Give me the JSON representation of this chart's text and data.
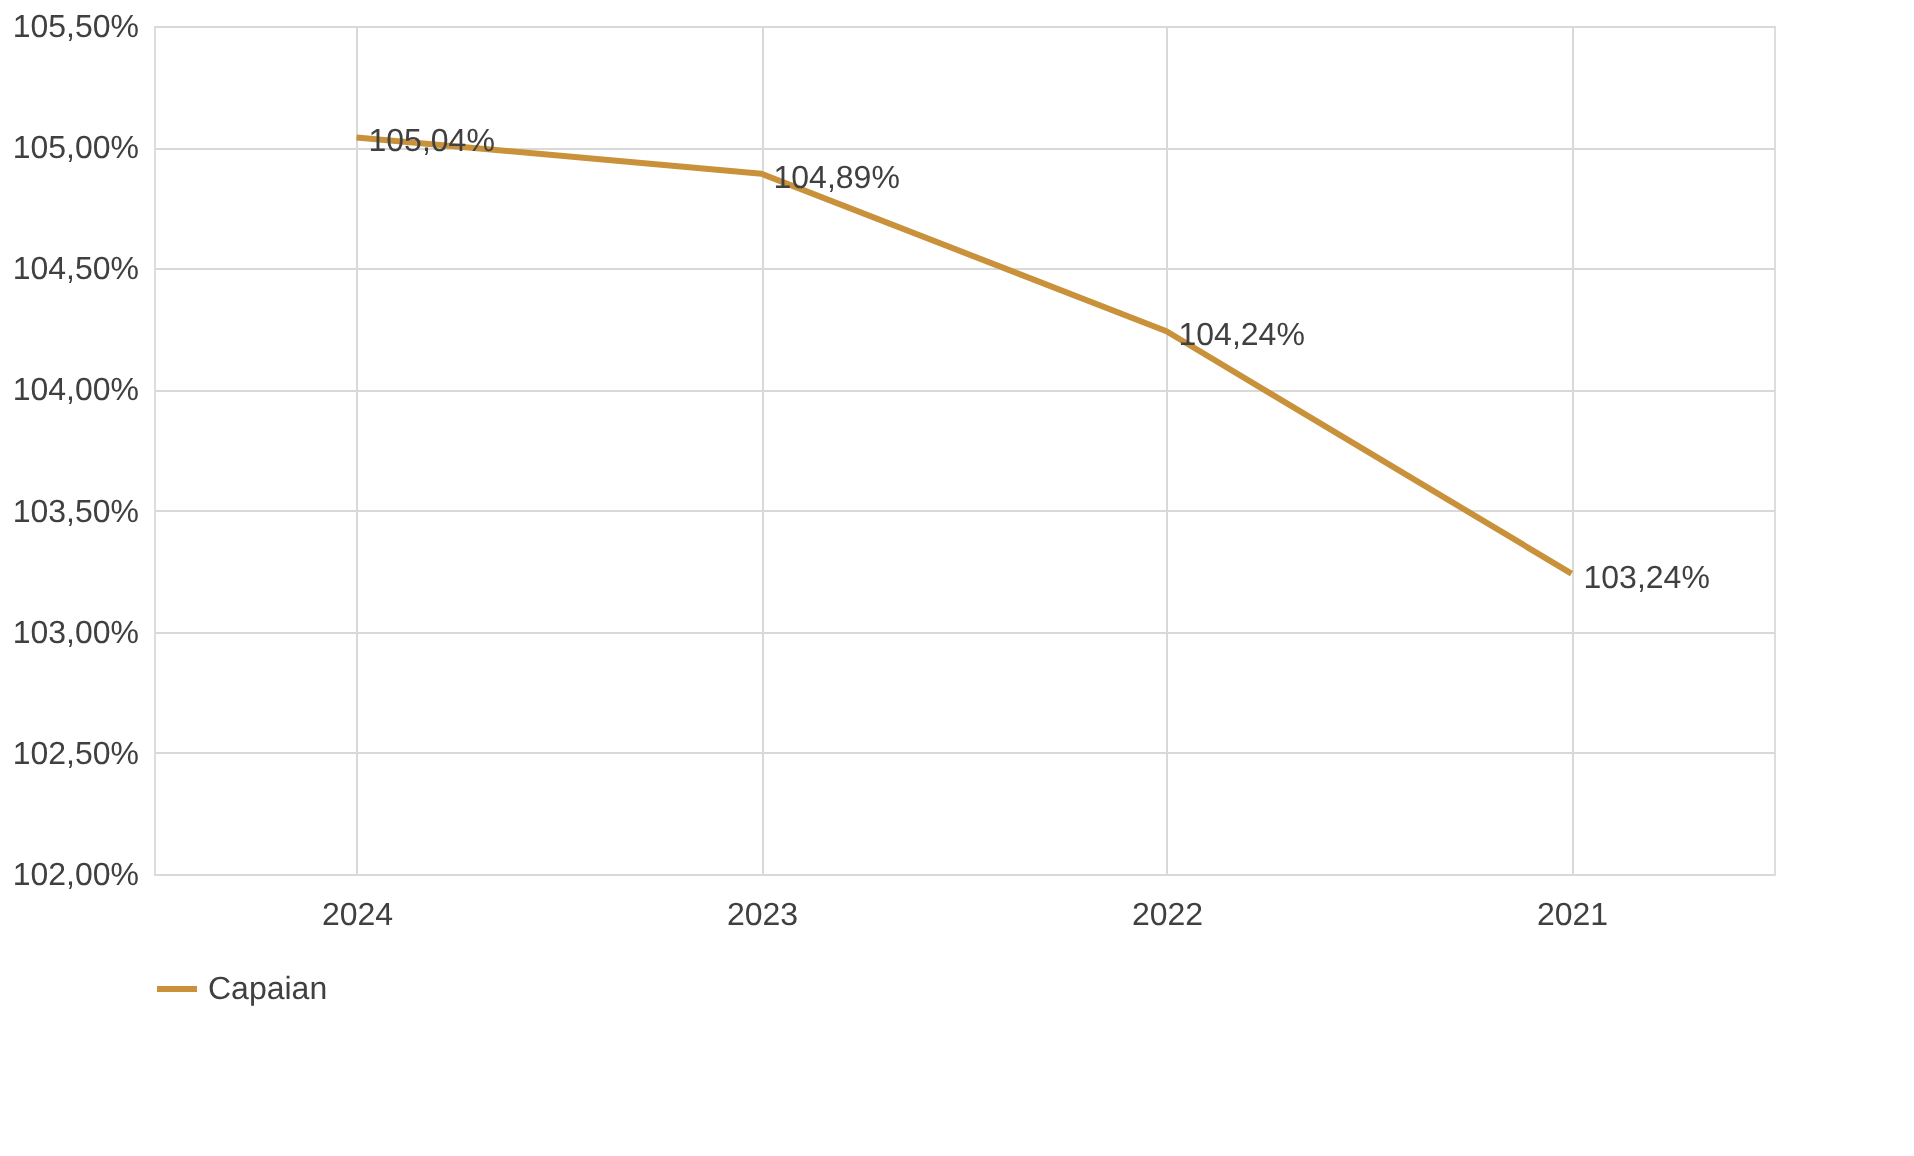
{
  "chart_data": {
    "type": "line",
    "categories": [
      "2024",
      "2023",
      "2022",
      "2021"
    ],
    "series": [
      {
        "name": "Capaian",
        "color": "#c8913a",
        "values": [
          105.04,
          104.89,
          104.24,
          103.24
        ],
        "value_labels": [
          "105,04%",
          "104,89%",
          "104,24%",
          "103,24%"
        ]
      }
    ],
    "ylim": [
      102,
      105.5
    ],
    "yticks": [
      {
        "value": 102,
        "label": "102,00%"
      },
      {
        "value": 102.5,
        "label": "102,50%"
      },
      {
        "value": 103,
        "label": "103,00%"
      },
      {
        "value": 103.5,
        "label": "103,50%"
      },
      {
        "value": 104,
        "label": "104,00%"
      },
      {
        "value": 104.5,
        "label": "104,50%"
      },
      {
        "value": 105,
        "label": "105,00%"
      },
      {
        "value": 105.5,
        "label": "105,50%"
      }
    ],
    "grid": true,
    "legend": "bottom",
    "marker": "none",
    "line_style": "solid"
  }
}
